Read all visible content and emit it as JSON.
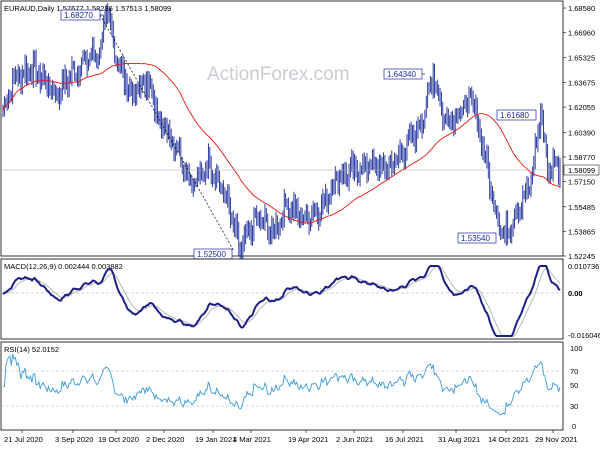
{
  "chart_data": [
    {
      "type": "ohlc",
      "header": "EURAUD,Daily  1.57677 1.58286 1.57513 1.58099",
      "watermark": "ActionForex.com",
      "x_tick_labels": [
        "21 Jul 2020",
        "3 Sep 2020",
        "19 Oct 2020",
        "2 Dec 2020",
        "19 Jan 2021",
        "4 Mar 2021",
        "19 Apr 2021",
        "2 Jun 2021",
        "16 Jul 2021",
        "31 Aug 2021",
        "14 Oct 2021",
        "29 Nov 2021"
      ],
      "y_tick_labels": [
        "1.68580",
        "1.66960",
        "1.65325",
        "1.63675",
        "1.62055",
        "1.60390",
        "1.58770",
        "1.57150",
        "1.55485",
        "1.53865",
        "1.52245"
      ],
      "current_price_label": "1.58099",
      "price_labels": [
        "1.68270",
        "1.64340",
        "1.61680",
        "1.52500",
        "1.53540"
      ],
      "price_path": [
        {
          "i": 0,
          "p": 1.618
        },
        {
          "i": 8,
          "p": 1.64
        },
        {
          "i": 20,
          "p": 1.645
        },
        {
          "i": 30,
          "p": 1.64
        },
        {
          "i": 38,
          "p": 1.628
        },
        {
          "i": 48,
          "p": 1.64
        },
        {
          "i": 60,
          "p": 1.652
        },
        {
          "i": 70,
          "p": 1.657
        },
        {
          "i": 75,
          "p": 1.6827
        },
        {
          "i": 84,
          "p": 1.648
        },
        {
          "i": 94,
          "p": 1.627
        },
        {
          "i": 104,
          "p": 1.638
        },
        {
          "i": 114,
          "p": 1.612
        },
        {
          "i": 126,
          "p": 1.595
        },
        {
          "i": 138,
          "p": 1.568
        },
        {
          "i": 150,
          "p": 1.584
        },
        {
          "i": 162,
          "p": 1.56
        },
        {
          "i": 172,
          "p": 1.525
        },
        {
          "i": 184,
          "p": 1.548
        },
        {
          "i": 196,
          "p": 1.538
        },
        {
          "i": 206,
          "p": 1.556
        },
        {
          "i": 218,
          "p": 1.547
        },
        {
          "i": 232,
          "p": 1.556
        },
        {
          "i": 242,
          "p": 1.575
        },
        {
          "i": 254,
          "p": 1.578
        },
        {
          "i": 266,
          "p": 1.583
        },
        {
          "i": 278,
          "p": 1.579
        },
        {
          "i": 290,
          "p": 1.59
        },
        {
          "i": 300,
          "p": 1.606
        },
        {
          "i": 306,
          "p": 1.6158
        },
        {
          "i": 312,
          "p": 1.6434
        },
        {
          "i": 320,
          "p": 1.612
        },
        {
          "i": 330,
          "p": 1.616
        },
        {
          "i": 340,
          "p": 1.626
        },
        {
          "i": 348,
          "p": 1.596
        },
        {
          "i": 356,
          "p": 1.556
        },
        {
          "i": 364,
          "p": 1.5354
        },
        {
          "i": 372,
          "p": 1.552
        },
        {
          "i": 382,
          "p": 1.566
        },
        {
          "i": 390,
          "p": 1.6168
        },
        {
          "i": 396,
          "p": 1.576
        },
        {
          "i": 400,
          "p": 1.585
        },
        {
          "i": 404,
          "p": 1.581
        }
      ],
      "moving_average_color": "#e8170f",
      "bar_color": "#1a2c9a"
    },
    {
      "type": "line",
      "label": "MACD(12,26,9) 0.002444 0.003882",
      "y_tick_labels": [
        "0.010736",
        "0.00",
        "-0.016046"
      ],
      "macd_color": "#1b1f86",
      "signal_color": "#b0b0b0"
    },
    {
      "type": "line",
      "label": "RSI(14) 52.0152",
      "y_tick_labels": [
        "100",
        "70",
        "50",
        "30",
        "0"
      ],
      "rsi_color": "#3a9ad9"
    }
  ]
}
